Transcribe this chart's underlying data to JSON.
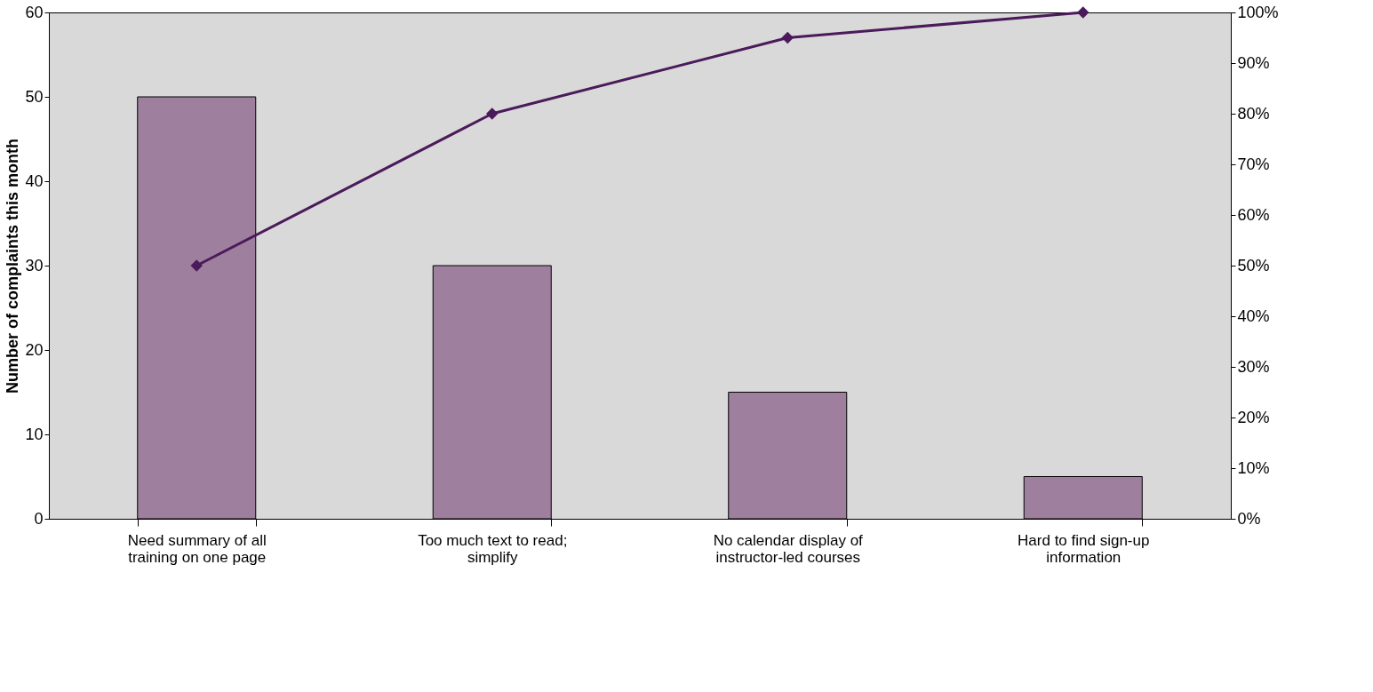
{
  "chart_data": {
    "type": "bar",
    "ylabel": "Number of complaints this month",
    "categories": [
      "Need summary of all training on one page",
      "Too much text to read; simplify",
      "No calendar display of instructor-led courses",
      "Hard to find sign-up information"
    ],
    "series": [
      {
        "type": "bar",
        "color": "#9e809e",
        "values": [
          50,
          30,
          15,
          5
        ]
      },
      {
        "type": "line",
        "axis": "y2",
        "color": "#4b1a5a",
        "marker": "diamond",
        "values": [
          50,
          80,
          95,
          100
        ]
      }
    ],
    "ylim": [
      0,
      60
    ],
    "yticks": [
      0,
      10,
      20,
      30,
      40,
      50,
      60
    ],
    "y2lim": [
      0,
      100
    ],
    "y2ticks": [
      {
        "value": 0,
        "label": "0%"
      },
      {
        "value": 10,
        "label": "10%"
      },
      {
        "value": 20,
        "label": "20%"
      },
      {
        "value": 30,
        "label": "30%"
      },
      {
        "value": 40,
        "label": "40%"
      },
      {
        "value": 50,
        "label": "50%"
      },
      {
        "value": 60,
        "label": "60%"
      },
      {
        "value": 70,
        "label": "70%"
      },
      {
        "value": 80,
        "label": "80%"
      },
      {
        "value": 90,
        "label": "90%"
      },
      {
        "value": 100,
        "label": "100%"
      }
    ],
    "grid": false,
    "legend": false
  }
}
